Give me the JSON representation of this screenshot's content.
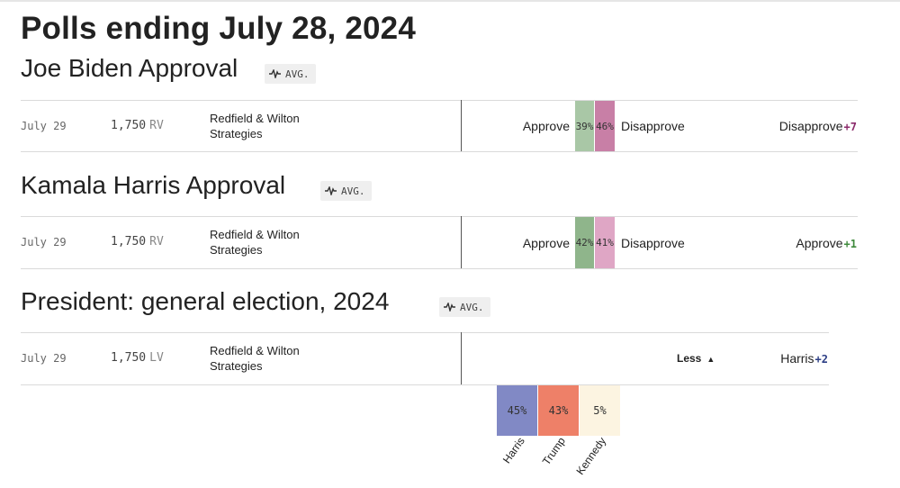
{
  "page_title": "Polls ending July 28, 2024",
  "colors": {
    "approve_light": "#a9c7a6",
    "approve_dark": "#8fb58b",
    "disapprove_dark": "#c87fa6",
    "disapprove_light": "#dfa6c5",
    "net_disapprove": "#8b2a6b",
    "net_approve": "#3f8a3c",
    "net_harris": "#2c3e85",
    "harris": "#8189c5",
    "trump": "#ee8068",
    "kennedy": "#fcf4e1"
  },
  "sections": [
    {
      "title": "Joe Biden Approval",
      "badge": "AVG.",
      "row": {
        "date": "July 29",
        "sample": "1,750",
        "population": "RV",
        "pollster": "Redfield & Wilton Strategies",
        "approve_label": "Approve",
        "approve_value": "39%",
        "disapprove_value": "46%",
        "disapprove_label": "Disapprove",
        "net_label": "Disapprove",
        "net_value": "+7"
      }
    },
    {
      "title": "Kamala Harris Approval",
      "badge": "AVG.",
      "row": {
        "date": "July 29",
        "sample": "1,750",
        "population": "RV",
        "pollster": "Redfield & Wilton Strategies",
        "approve_label": "Approve",
        "approve_value": "42%",
        "disapprove_value": "41%",
        "disapprove_label": "Disapprove",
        "net_label": "Approve",
        "net_value": "+1"
      }
    },
    {
      "title": "President: general election, 2024",
      "badge": "AVG.",
      "row": {
        "date": "July 29",
        "sample": "1,750",
        "population": "LV",
        "pollster": "Redfield & Wilton Strategies",
        "toggle_label": "Less",
        "net_label": "Harris",
        "net_value": "+2"
      },
      "candidates": [
        {
          "name": "Harris",
          "value": "45%"
        },
        {
          "name": "Trump",
          "value": "43%"
        },
        {
          "name": "Kennedy",
          "value": "5%"
        }
      ]
    }
  ]
}
